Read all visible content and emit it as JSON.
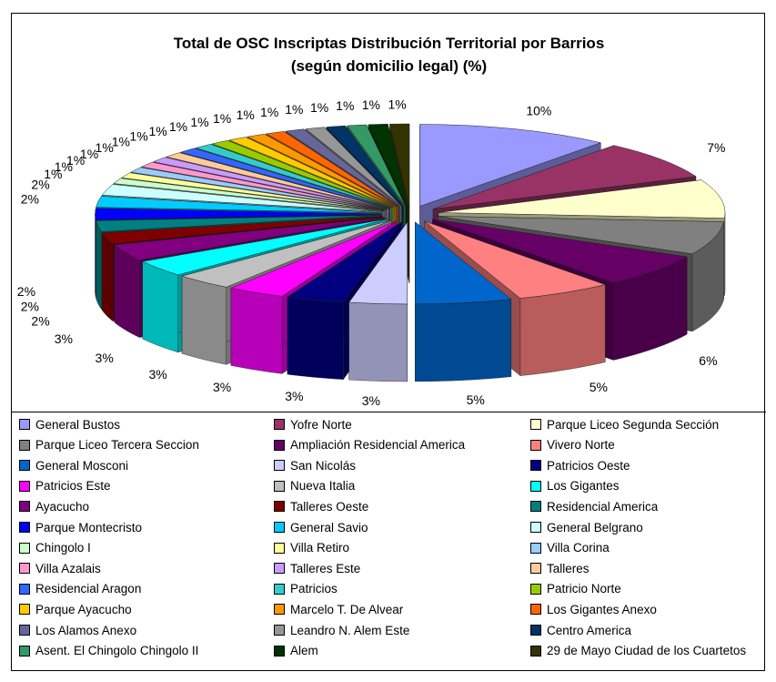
{
  "chart_data": {
    "type": "pie",
    "title": "Total de OSC Inscriptas Distribución Territorial por Barrios",
    "subtitle": "(según domicilio legal) (%)",
    "legend_position": "bottom",
    "categories": [
      "General Bustos",
      "Yofre Norte",
      "Parque Liceo Segunda Sección",
      "Parque Liceo Tercera Seccion",
      "Ampliación Residencial America",
      "Vivero Norte",
      "General Mosconi",
      "San Nicolás",
      "Patricios Oeste",
      "Patricios Este",
      "Nueva Italia",
      "Los Gigantes",
      "Ayacucho",
      "Talleres Oeste",
      "Residencial America",
      "Parque Montecristo",
      "General Savio",
      "General Belgrano",
      "Chingolo I",
      "Villa Retiro",
      "Villa Corina",
      "Villa Azalais",
      "Talleres Este",
      "Talleres",
      "Residencial Aragon",
      "Patricios",
      "Patricio Norte",
      "Parque Ayacucho",
      "Marcelo T. De Alvear",
      "Los Gigantes Anexo",
      "Los Alamos Anexo",
      "Leandro N. Alem Este",
      "Centro America",
      "Asent. El Chingolo Chingolo II",
      "Alem",
      "29 de Mayo Ciudad de los Cuartetos"
    ],
    "values": [
      10,
      7,
      7,
      6,
      6,
      5,
      5,
      3,
      3,
      3,
      3,
      3,
      3,
      2,
      2,
      2,
      2,
      2,
      1,
      1,
      1,
      1,
      1,
      1,
      1,
      1,
      1,
      1,
      1,
      1,
      1,
      1,
      1,
      1,
      1,
      1
    ],
    "labels": [
      "10%",
      "7%",
      "7%",
      "6%",
      "6%",
      "5%",
      "5%",
      "3%",
      "3%",
      "3%",
      "3%",
      "3%",
      "3%",
      "2%",
      "2%",
      "2%",
      "2%",
      "2%",
      "1%",
      "1%",
      "1%",
      "1%",
      "1%",
      "1%",
      "1%",
      "1%",
      "1%",
      "1%",
      "1%",
      "1%",
      "1%",
      "1%",
      "1%",
      "1%",
      "1%",
      "1%"
    ],
    "colors": [
      "#9999FF",
      "#993366",
      "#FFFFCC",
      "#808080",
      "#660066",
      "#FF8080",
      "#0066CC",
      "#CCCCFF",
      "#000080",
      "#FF00FF",
      "#C0C0C0",
      "#00FFFF",
      "#800080",
      "#800000",
      "#008080",
      "#0000FF",
      "#00CCFF",
      "#CCFFFF",
      "#CCFFCC",
      "#FFFF99",
      "#99CCFF",
      "#FF99CC",
      "#CC99FF",
      "#FFCC99",
      "#3366FF",
      "#33CCCC",
      "#99CC00",
      "#FFCC00",
      "#FF9900",
      "#FF6600",
      "#666699",
      "#969696",
      "#003366",
      "#339966",
      "#003300",
      "#333300"
    ]
  }
}
